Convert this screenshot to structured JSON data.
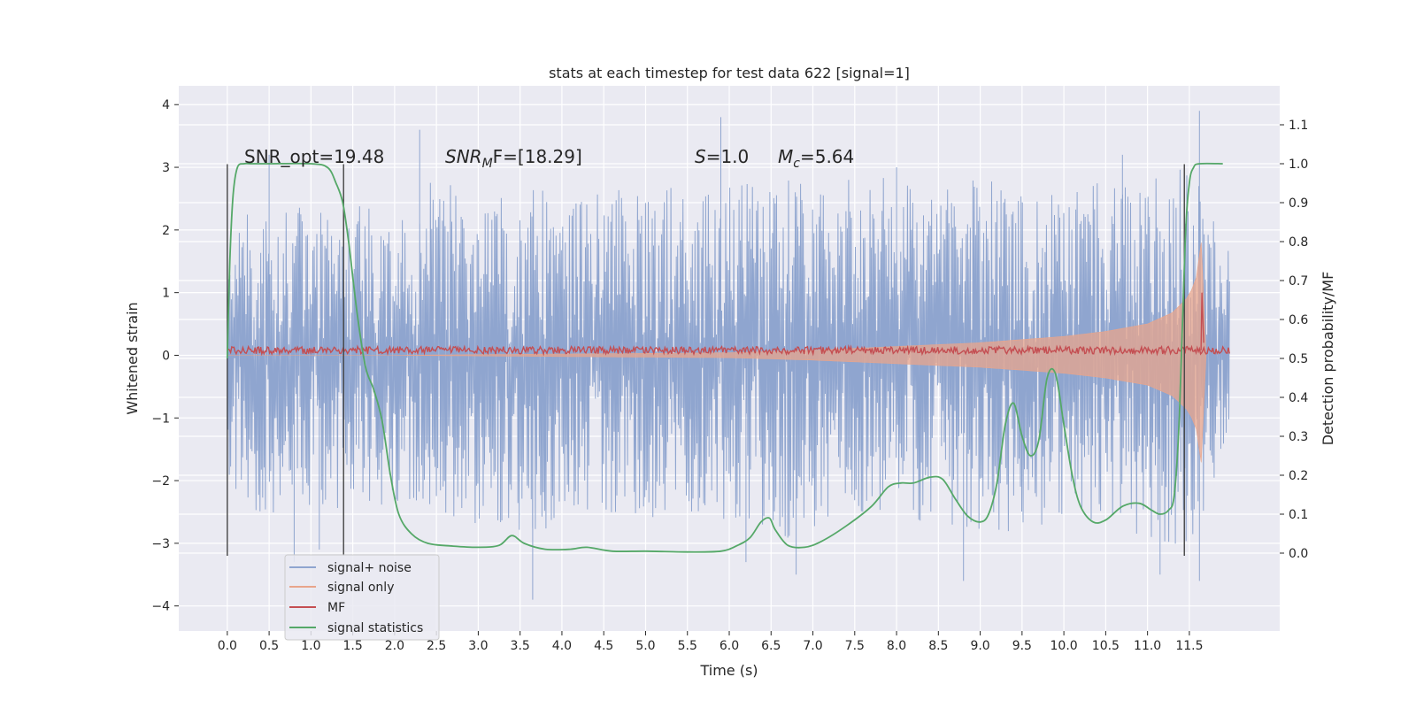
{
  "chart_data": {
    "type": "line",
    "title": "stats at each timestep for test data 622 [signal=1]",
    "xlabel": "Time (s)",
    "ylabel": "Whitened strain",
    "ylabel_right": "Detection probability/MF",
    "xlim": [
      -0.58,
      12.58
    ],
    "ylim": [
      -4.4,
      4.3
    ],
    "ylim_right": [
      -0.2,
      1.2
    ],
    "x_ticks": [
      0.0,
      0.5,
      1.0,
      1.5,
      2.0,
      2.5,
      3.0,
      3.5,
      4.0,
      4.5,
      5.0,
      5.5,
      6.0,
      6.5,
      7.0,
      7.5,
      8.0,
      8.5,
      9.0,
      9.5,
      10.0,
      10.5,
      11.0,
      11.5
    ],
    "x_tick_labels": [
      "0.0",
      "0.5",
      "1.0",
      "1.5",
      "2.0",
      "2.5",
      "3.0",
      "3.5",
      "4.0",
      "4.5",
      "5.0",
      "5.5",
      "6.0",
      "6.5",
      "7.0",
      "7.5",
      "8.0",
      "8.5",
      "9.0",
      "9.5",
      "10.0",
      "10.5",
      "11.0",
      "11.5"
    ],
    "y_ticks": [
      -4,
      -3,
      -2,
      -1,
      0,
      1,
      2,
      3,
      4
    ],
    "y_tick_labels": [
      "−4",
      "−3",
      "−2",
      "−1",
      "0",
      "1",
      "2",
      "3",
      "4"
    ],
    "y_right_ticks": [
      0.0,
      0.1,
      0.2,
      0.3,
      0.4,
      0.5,
      0.6,
      0.7,
      0.8,
      0.9,
      1.0,
      1.1
    ],
    "y_right_tick_labels": [
      "0.0",
      "0.1",
      "0.2",
      "0.3",
      "0.4",
      "0.5",
      "0.6",
      "0.7",
      "0.8",
      "0.9",
      "1.0",
      "1.1"
    ],
    "grid": true,
    "legend_position": "lower-left",
    "annotations": {
      "snr_opt": "SNR_opt=19.48",
      "snr_mf_sym": "SNR",
      "snr_mf_sub": "M",
      "snr_mf_rest": "F=[18.29]",
      "s_sym": "S",
      "s_rest": "=1.0",
      "mc_sym": "M",
      "mc_sub": "c",
      "mc_rest": "=5.64"
    },
    "vertical_lines_x": [
      0.0,
      1.39,
      11.44
    ],
    "vertical_lines_yrange": [
      -3.2,
      3.05
    ],
    "series": [
      {
        "name": "signal+ noise",
        "color": "#8fa5cf",
        "axis": "left",
        "x_range": [
          0.0,
          11.98
        ],
        "envelope": {
          "x": [
            0.0,
            0.5,
            1.0,
            1.5,
            2.0,
            2.5,
            3.0,
            3.5,
            4.0,
            4.5,
            5.0,
            5.5,
            6.0,
            6.5,
            7.0,
            7.5,
            8.0,
            8.5,
            9.0,
            9.5,
            10.0,
            10.5,
            11.0,
            11.5,
            11.98
          ],
          "upper": [
            2.0,
            2.6,
            2.3,
            2.5,
            2.2,
            2.9,
            2.5,
            2.8,
            2.6,
            2.6,
            2.8,
            2.7,
            2.7,
            2.9,
            2.7,
            2.9,
            2.8,
            2.7,
            3.0,
            2.6,
            2.7,
            2.8,
            2.9,
            3.0,
            1.9
          ],
          "lower": [
            -2.2,
            -2.6,
            -2.4,
            -2.8,
            -2.5,
            -2.5,
            -2.7,
            -2.9,
            -2.7,
            -2.6,
            -2.6,
            -2.7,
            -2.6,
            -3.0,
            -2.8,
            -2.6,
            -2.6,
            -2.8,
            -2.9,
            -2.8,
            -2.6,
            -2.7,
            -2.9,
            -3.1,
            -1.8
          ]
        },
        "peaks": [
          [
            0.8,
            -3.3
          ],
          [
            0.5,
            3.2
          ],
          [
            1.1,
            -3.1
          ],
          [
            2.3,
            3.6
          ],
          [
            3.65,
            -3.9
          ],
          [
            5.9,
            3.8
          ],
          [
            6.2,
            -3.3
          ],
          [
            6.8,
            -3.5
          ],
          [
            8.0,
            3.0
          ],
          [
            8.8,
            -3.6
          ],
          [
            10.7,
            3.2
          ],
          [
            11.15,
            -3.5
          ],
          [
            11.62,
            3.9
          ],
          [
            11.62,
            -3.6
          ]
        ]
      },
      {
        "name": "signal only",
        "color": "#e8a58c",
        "axis": "left",
        "amplitude_envelope": {
          "x": [
            0.0,
            2.0,
            4.0,
            6.0,
            7.0,
            8.0,
            9.0,
            10.0,
            10.5,
            11.0,
            11.3,
            11.5,
            11.6,
            11.65,
            11.7
          ],
          "amp": [
            0.0,
            0.0,
            0.02,
            0.04,
            0.08,
            0.14,
            0.2,
            0.3,
            0.38,
            0.5,
            0.68,
            0.95,
            1.3,
            1.9,
            0.0
          ]
        }
      },
      {
        "name": "MF",
        "color": "#c44e52",
        "axis": "left",
        "baseline": 0.08,
        "noise_amp": 0.06,
        "spike": [
          11.65,
          1.0
        ]
      },
      {
        "name": "signal statistics",
        "color": "#55a868",
        "axis": "right",
        "x": [
          0.0,
          0.03,
          0.07,
          0.12,
          0.2,
          0.3,
          0.5,
          1.0,
          1.2,
          1.3,
          1.38,
          1.45,
          1.55,
          1.65,
          1.75,
          1.85,
          1.95,
          2.05,
          2.2,
          2.4,
          2.7,
          3.0,
          3.25,
          3.4,
          3.55,
          3.8,
          4.1,
          4.3,
          4.6,
          5.0,
          5.5,
          5.9,
          6.1,
          6.25,
          6.38,
          6.48,
          6.55,
          6.7,
          6.9,
          7.1,
          7.4,
          7.7,
          7.9,
          8.05,
          8.2,
          8.4,
          8.55,
          8.7,
          8.85,
          9.0,
          9.1,
          9.2,
          9.3,
          9.4,
          9.5,
          9.6,
          9.7,
          9.8,
          9.9,
          10.0,
          10.1,
          10.2,
          10.35,
          10.5,
          10.7,
          10.9,
          11.05,
          11.15,
          11.25,
          11.32,
          11.38,
          11.45,
          11.5,
          11.55,
          11.62,
          11.9
        ],
        "y": [
          0.5,
          0.75,
          0.92,
          0.99,
          1.0,
          1.0,
          1.0,
          1.0,
          0.99,
          0.95,
          0.9,
          0.8,
          0.62,
          0.48,
          0.42,
          0.34,
          0.2,
          0.1,
          0.05,
          0.025,
          0.018,
          0.015,
          0.02,
          0.045,
          0.025,
          0.01,
          0.01,
          0.015,
          0.005,
          0.005,
          0.003,
          0.005,
          0.02,
          0.04,
          0.08,
          0.09,
          0.06,
          0.02,
          0.015,
          0.03,
          0.07,
          0.12,
          0.17,
          0.18,
          0.18,
          0.195,
          0.19,
          0.14,
          0.095,
          0.08,
          0.1,
          0.18,
          0.33,
          0.385,
          0.3,
          0.25,
          0.29,
          0.45,
          0.46,
          0.33,
          0.2,
          0.12,
          0.08,
          0.085,
          0.12,
          0.128,
          0.11,
          0.1,
          0.11,
          0.15,
          0.35,
          0.8,
          0.95,
          0.99,
          1.0,
          1.0
        ]
      }
    ]
  }
}
